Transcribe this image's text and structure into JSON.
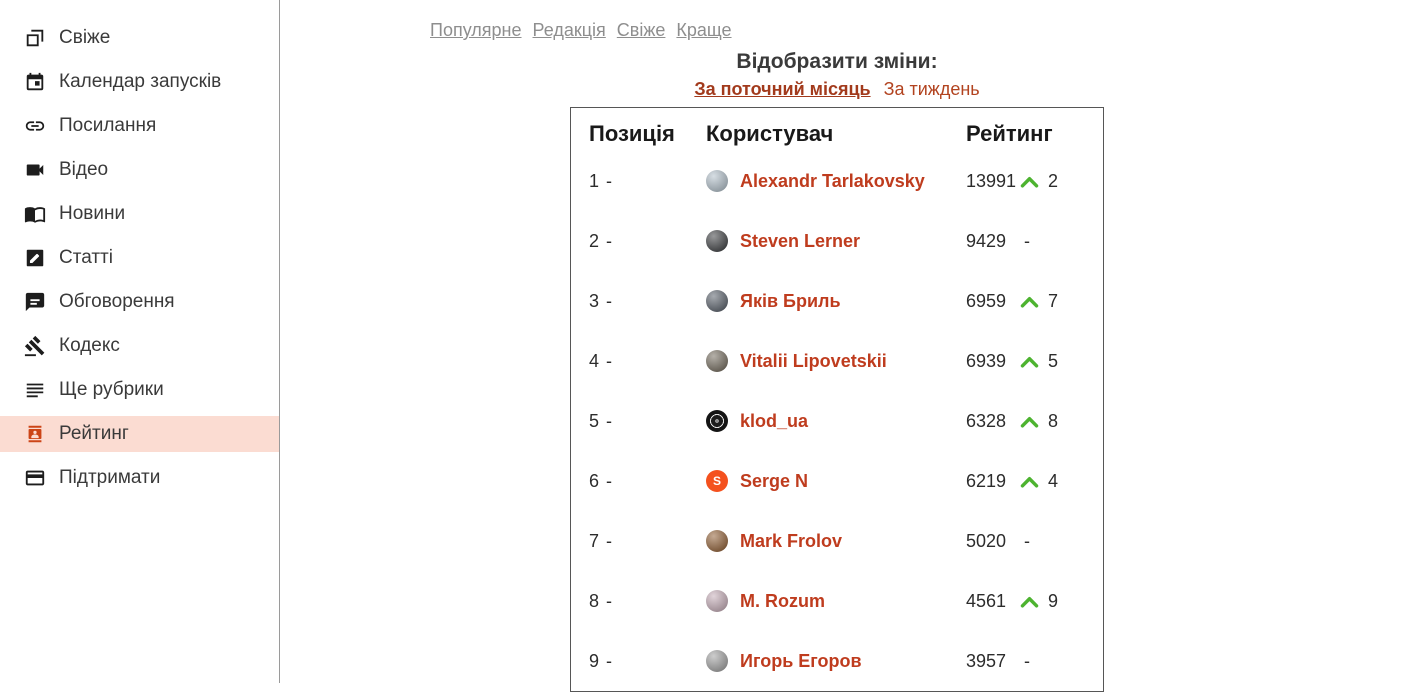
{
  "colors": {
    "accent": "#bf3c1e",
    "filter-red": "#b2431f",
    "tab-gray": "#8e8e8e",
    "up-green": "#4db330",
    "active-bg": "#fbdcd2",
    "active-icon": "#cc4517",
    "table-border": "#565656",
    "sidebar-border": "#9a9a9a",
    "text-dark": "#2c2c2c"
  },
  "sidebar": {
    "items": [
      {
        "label": "Свіже",
        "icon": "feed-icon",
        "active": false
      },
      {
        "label": "Календар запусків",
        "icon": "calendar-icon",
        "active": false
      },
      {
        "label": "Посилання",
        "icon": "link-icon",
        "active": false
      },
      {
        "label": "Відео",
        "icon": "video-icon",
        "active": false
      },
      {
        "label": "Новини",
        "icon": "news-icon",
        "active": false
      },
      {
        "label": "Статті",
        "icon": "article-icon",
        "active": false
      },
      {
        "label": "Обговорення",
        "icon": "chat-icon",
        "active": false
      },
      {
        "label": "Кодекс",
        "icon": "gavel-icon",
        "active": false
      },
      {
        "label": "Ще рубрики",
        "icon": "rubrics-icon",
        "active": false
      },
      {
        "label": "Рейтинг",
        "icon": "rating-icon",
        "active": true
      },
      {
        "label": "Підтримати",
        "icon": "donate-icon",
        "active": false
      }
    ]
  },
  "topnav": {
    "tabs": [
      {
        "label": "Популярне"
      },
      {
        "label": "Редакція"
      },
      {
        "label": "Свіже"
      },
      {
        "label": "Краще"
      }
    ]
  },
  "main": {
    "heading": "Відобразити зміни:",
    "filters": [
      {
        "label": "За поточний місяць",
        "active": true
      },
      {
        "label": "За тиждень",
        "active": false
      }
    ]
  },
  "table": {
    "headers": {
      "position": "Позиція",
      "user": "Користувач",
      "rating": "Рейтинг"
    },
    "rows": [
      {
        "rank": "1",
        "rank_change": "-",
        "name": "Alexandr Tarlakovsky",
        "rating": "13991",
        "up": true,
        "delta": "2",
        "avatar": {
          "style": "photo",
          "color": "#aebdc8"
        }
      },
      {
        "rank": "2",
        "rank_change": "-",
        "name": "Steven Lerner",
        "rating": "9429",
        "up": false,
        "avatar": {
          "style": "photo",
          "color": "#2f3134"
        }
      },
      {
        "rank": "3",
        "rank_change": "-",
        "name": "Яків Бриль",
        "rating": "6959",
        "up": true,
        "delta": "7",
        "avatar": {
          "style": "photo",
          "color": "#4d5560"
        }
      },
      {
        "rank": "4",
        "rank_change": "-",
        "name": "Vitalii Lipovetskii",
        "rating": "6939",
        "up": true,
        "delta": "5",
        "avatar": {
          "style": "photo",
          "color": "#6a6152"
        }
      },
      {
        "rank": "5",
        "rank_change": "-",
        "name": "klod_ua",
        "rating": "6328",
        "up": true,
        "delta": "8",
        "avatar": {
          "style": "record",
          "color": "#161616"
        }
      },
      {
        "rank": "6",
        "rank_change": "-",
        "name": "Serge N",
        "rating": "6219",
        "up": true,
        "delta": "4",
        "avatar": {
          "style": "letter",
          "letter": "S",
          "color": "#f4511e"
        }
      },
      {
        "rank": "7",
        "rank_change": "-",
        "name": "Mark Frolov",
        "rating": "5020",
        "up": false,
        "avatar": {
          "style": "photo",
          "color": "#8a5426"
        }
      },
      {
        "rank": "8",
        "rank_change": "-",
        "name": "M. Rozum",
        "rating": "4561",
        "up": true,
        "delta": "9",
        "avatar": {
          "style": "photo",
          "color": "#c3a8b4"
        }
      },
      {
        "rank": "9",
        "rank_change": "-",
        "name": "Игорь Егоров",
        "rating": "3957",
        "up": false,
        "avatar": {
          "style": "photo",
          "color": "#9b9b9b"
        }
      }
    ]
  }
}
